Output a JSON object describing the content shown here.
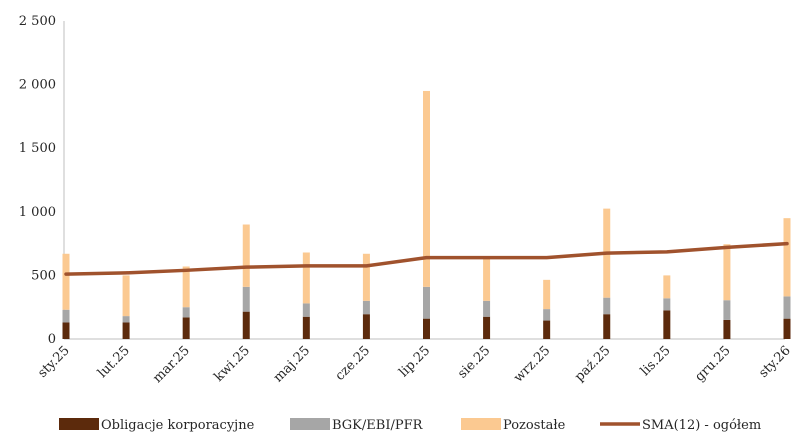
{
  "chart_data": {
    "type": "bar",
    "stacked": true,
    "categories": [
      "sty.25",
      "lut.25",
      "mar.25",
      "kwi.25",
      "maj.25",
      "cze.25",
      "lip.25",
      "sie.25",
      "wrz.25",
      "paź.25",
      "lis.25",
      "gru.25",
      "sty.26"
    ],
    "ylim": [
      0,
      2500
    ],
    "yticks": [
      0,
      500,
      1000,
      1500,
      2000,
      2500
    ],
    "ytick_labels": [
      "0",
      "500",
      "1 000",
      "1 500",
      "2 000",
      "2 500"
    ],
    "grid": false,
    "legend_position": "bottom",
    "series": [
      {
        "name": "Obligacje korporacyjne",
        "kind": "bar",
        "color": "#5c2a0c",
        "values": [
          130,
          130,
          170,
          215,
          175,
          195,
          160,
          175,
          145,
          195,
          225,
          150,
          160
        ]
      },
      {
        "name": "BGK/EBI/PFR",
        "kind": "bar",
        "color": "#a6a6a6",
        "values": [
          100,
          50,
          80,
          195,
          105,
          105,
          250,
          125,
          90,
          130,
          95,
          155,
          175
        ]
      },
      {
        "name": "Pozostałe",
        "kind": "bar",
        "color": "#fbc991",
        "values": [
          440,
          320,
          320,
          490,
          400,
          370,
          1540,
          340,
          230,
          700,
          180,
          440,
          615
        ]
      },
      {
        "name": "SMA(12) - ogółem",
        "kind": "line",
        "color": "#a0522d",
        "values": [
          510,
          520,
          540,
          565,
          575,
          575,
          640,
          640,
          640,
          675,
          685,
          720,
          750
        ]
      }
    ]
  }
}
